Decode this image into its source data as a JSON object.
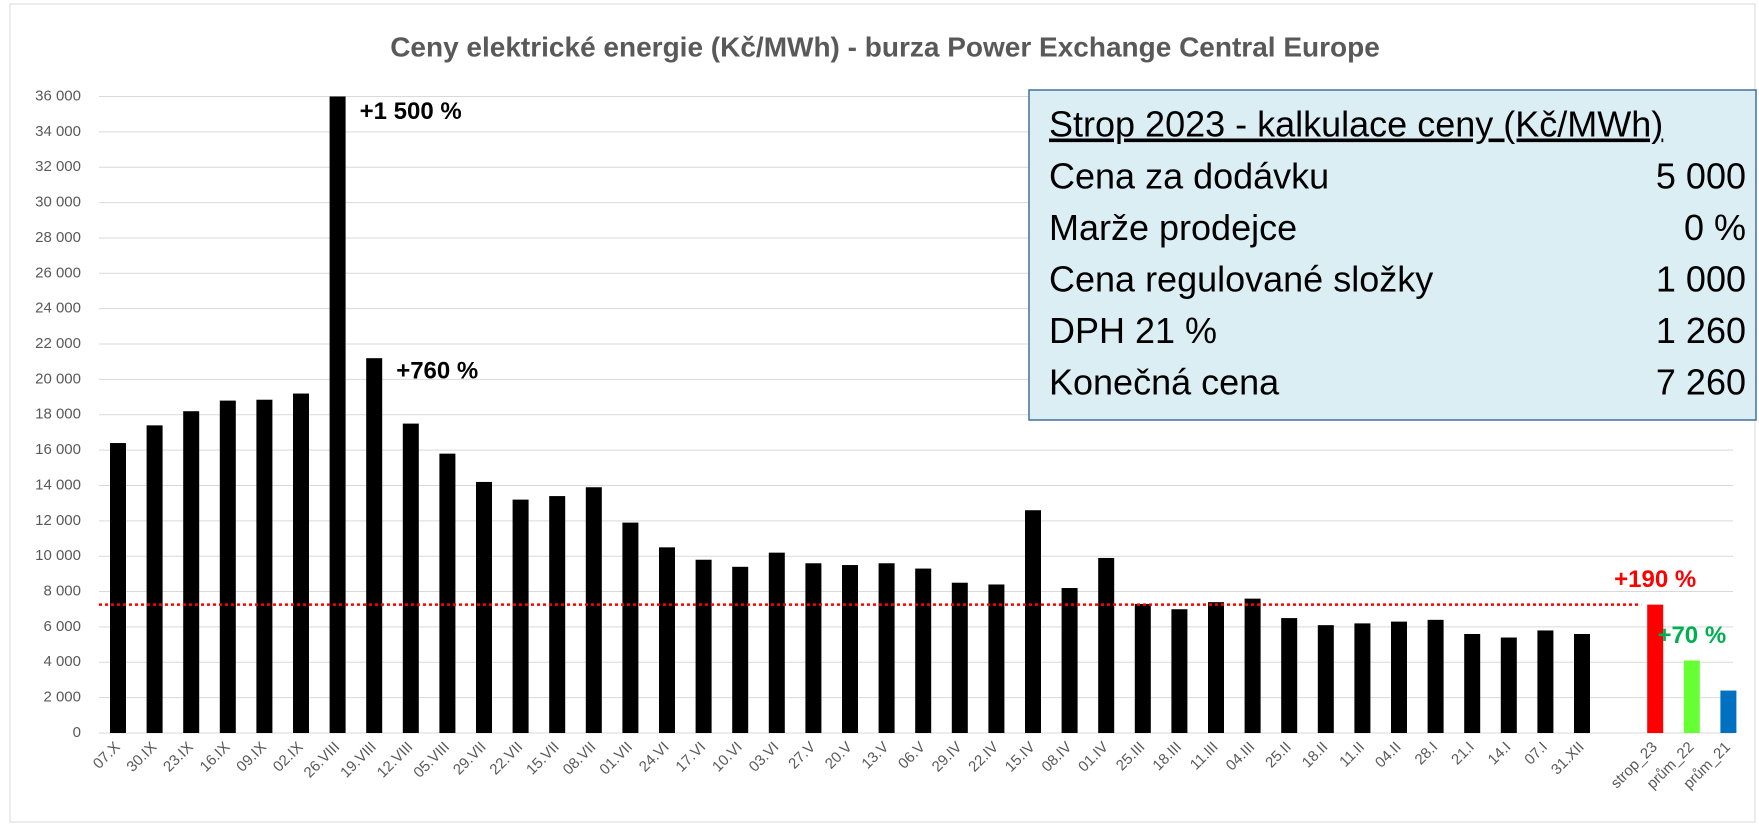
{
  "chart_data": {
    "type": "bar",
    "title": "Ceny elektrické energie (Kč/MWh) - burza Power Exchange Central Europe",
    "categories": [
      "07.X",
      "30.IX",
      "23.IX",
      "16.IX",
      "09.IX",
      "02.IX",
      "26.VIII",
      "19.VIII",
      "12.VIII",
      "05.VIII",
      "29.VII",
      "22.VII",
      "15.VII",
      "08.VII",
      "01.VII",
      "24.VI",
      "17.VI",
      "10.VI",
      "03.VI",
      "27.V",
      "20.V",
      "13.V",
      "06.V",
      "29.IV",
      "22.IV",
      "15.IV",
      "08.IV",
      "01.IV",
      "25.III",
      "18.III",
      "11.III",
      "04.III",
      "25.II",
      "18.II",
      "11.II",
      "04.II",
      "28.I",
      "21.I",
      "14.I",
      "07.I",
      "31.XII",
      null,
      "strop_23",
      "prům_22",
      "prům_21"
    ],
    "values": [
      16400,
      17400,
      18200,
      18800,
      18850,
      19200,
      36000,
      21200,
      17500,
      15800,
      14200,
      13200,
      13400,
      13900,
      11900,
      10500,
      9800,
      9400,
      10200,
      9600,
      9500,
      9600,
      9300,
      8500,
      8400,
      12600,
      8200,
      9900,
      7300,
      7000,
      7400,
      7600,
      6500,
      6100,
      6200,
      6300,
      6400,
      5600,
      5400,
      5800,
      5600,
      null,
      7260,
      4100,
      2400
    ],
    "colors": [
      "#000000",
      "#000000",
      "#000000",
      "#000000",
      "#000000",
      "#000000",
      "#000000",
      "#000000",
      "#000000",
      "#000000",
      "#000000",
      "#000000",
      "#000000",
      "#000000",
      "#000000",
      "#000000",
      "#000000",
      "#000000",
      "#000000",
      "#000000",
      "#000000",
      "#000000",
      "#000000",
      "#000000",
      "#000000",
      "#000000",
      "#000000",
      "#000000",
      "#000000",
      "#000000",
      "#000000",
      "#000000",
      "#000000",
      "#000000",
      "#000000",
      "#000000",
      "#000000",
      "#000000",
      "#000000",
      "#000000",
      "#000000",
      null,
      "#ff0000",
      "#66ff33",
      "#0070c0"
    ],
    "ylim": [
      0,
      36000
    ],
    "yticks": [
      0,
      {
        "value": 2000,
        "label": "2 000"
      },
      {
        "value": 4000,
        "label": "4 000"
      },
      {
        "value": 6000,
        "label": "6 000"
      },
      {
        "value": 8000,
        "label": "8 000"
      },
      {
        "value": 10000,
        "label": "10 000"
      },
      {
        "value": 12000,
        "label": "12 000"
      },
      {
        "value": 14000,
        "label": "14 000"
      },
      {
        "value": 16000,
        "label": "16 000"
      },
      {
        "value": 18000,
        "label": "18 000"
      },
      {
        "value": 20000,
        "label": "20 000"
      },
      {
        "value": 22000,
        "label": "22 000"
      },
      {
        "value": 24000,
        "label": "24 000"
      },
      {
        "value": 26000,
        "label": "26 000"
      },
      {
        "value": 28000,
        "label": "28 000"
      },
      {
        "value": 30000,
        "label": "30 000"
      },
      {
        "value": 32000,
        "label": "32 000"
      },
      {
        "value": 34000,
        "label": "34 000"
      },
      {
        "value": 36000,
        "label": "36 000"
      }
    ],
    "grid": true,
    "reference_line": {
      "value": 7260,
      "color": "#ff0000"
    },
    "annotations": [
      {
        "text": "+1 500 %",
        "category": "26.VIII",
        "color": "#000000",
        "position": "right"
      },
      {
        "text": "+760 %",
        "category": "19.VIII",
        "color": "#000000",
        "position": "right"
      },
      {
        "text": "+190 %",
        "category": "strop_23",
        "color": "#ff0000",
        "position": "above"
      },
      {
        "text": "+70 %",
        "category": "prům_22",
        "color": "#00b050",
        "position": "above"
      }
    ],
    "info_box": {
      "title": "Strop 2023 - kalkulace ceny (Kč/MWh)",
      "rows": [
        {
          "label": "Cena za dodávku",
          "value": "5 000"
        },
        {
          "label": "Marže prodejce",
          "value": "0 %"
        },
        {
          "label": "Cena regulované složky",
          "value": "1 000"
        },
        {
          "label": "DPH 21 %",
          "value": "1 260"
        },
        {
          "label": "Konečná cena",
          "value": "7 260"
        }
      ]
    }
  }
}
